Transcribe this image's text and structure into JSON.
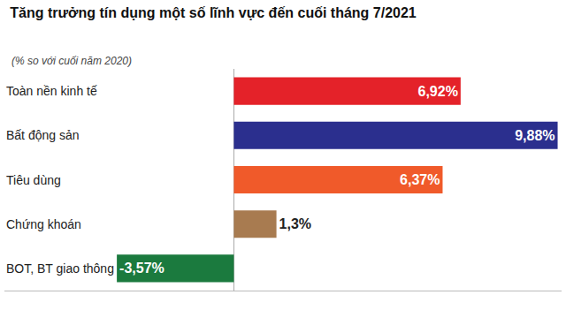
{
  "chart_data": {
    "type": "bar",
    "title": "Tăng trưởng tín dụng một số lĩnh vực đến cuối tháng 7/2021",
    "subtitle": "(% so với cuối năm 2020)",
    "orientation": "horizontal",
    "categories": [
      "Toàn nền kinh tế",
      "Bất động sản",
      "Tiêu dùng",
      "Chứng khoán",
      "BOT, BT giao thông"
    ],
    "values": [
      6.92,
      9.88,
      6.37,
      1.3,
      -3.57
    ],
    "value_labels": [
      "6,92%",
      "9,88%",
      "6,37%",
      "1,3%",
      "-3,57%"
    ],
    "colors": [
      "#e42229",
      "#2b2f8e",
      "#f05a2a",
      "#a87b50",
      "#1b7a3e"
    ],
    "xlim": [
      -7,
      10
    ],
    "xticks": [],
    "data_labels": true,
    "tick_labels": "y",
    "grid": false
  }
}
